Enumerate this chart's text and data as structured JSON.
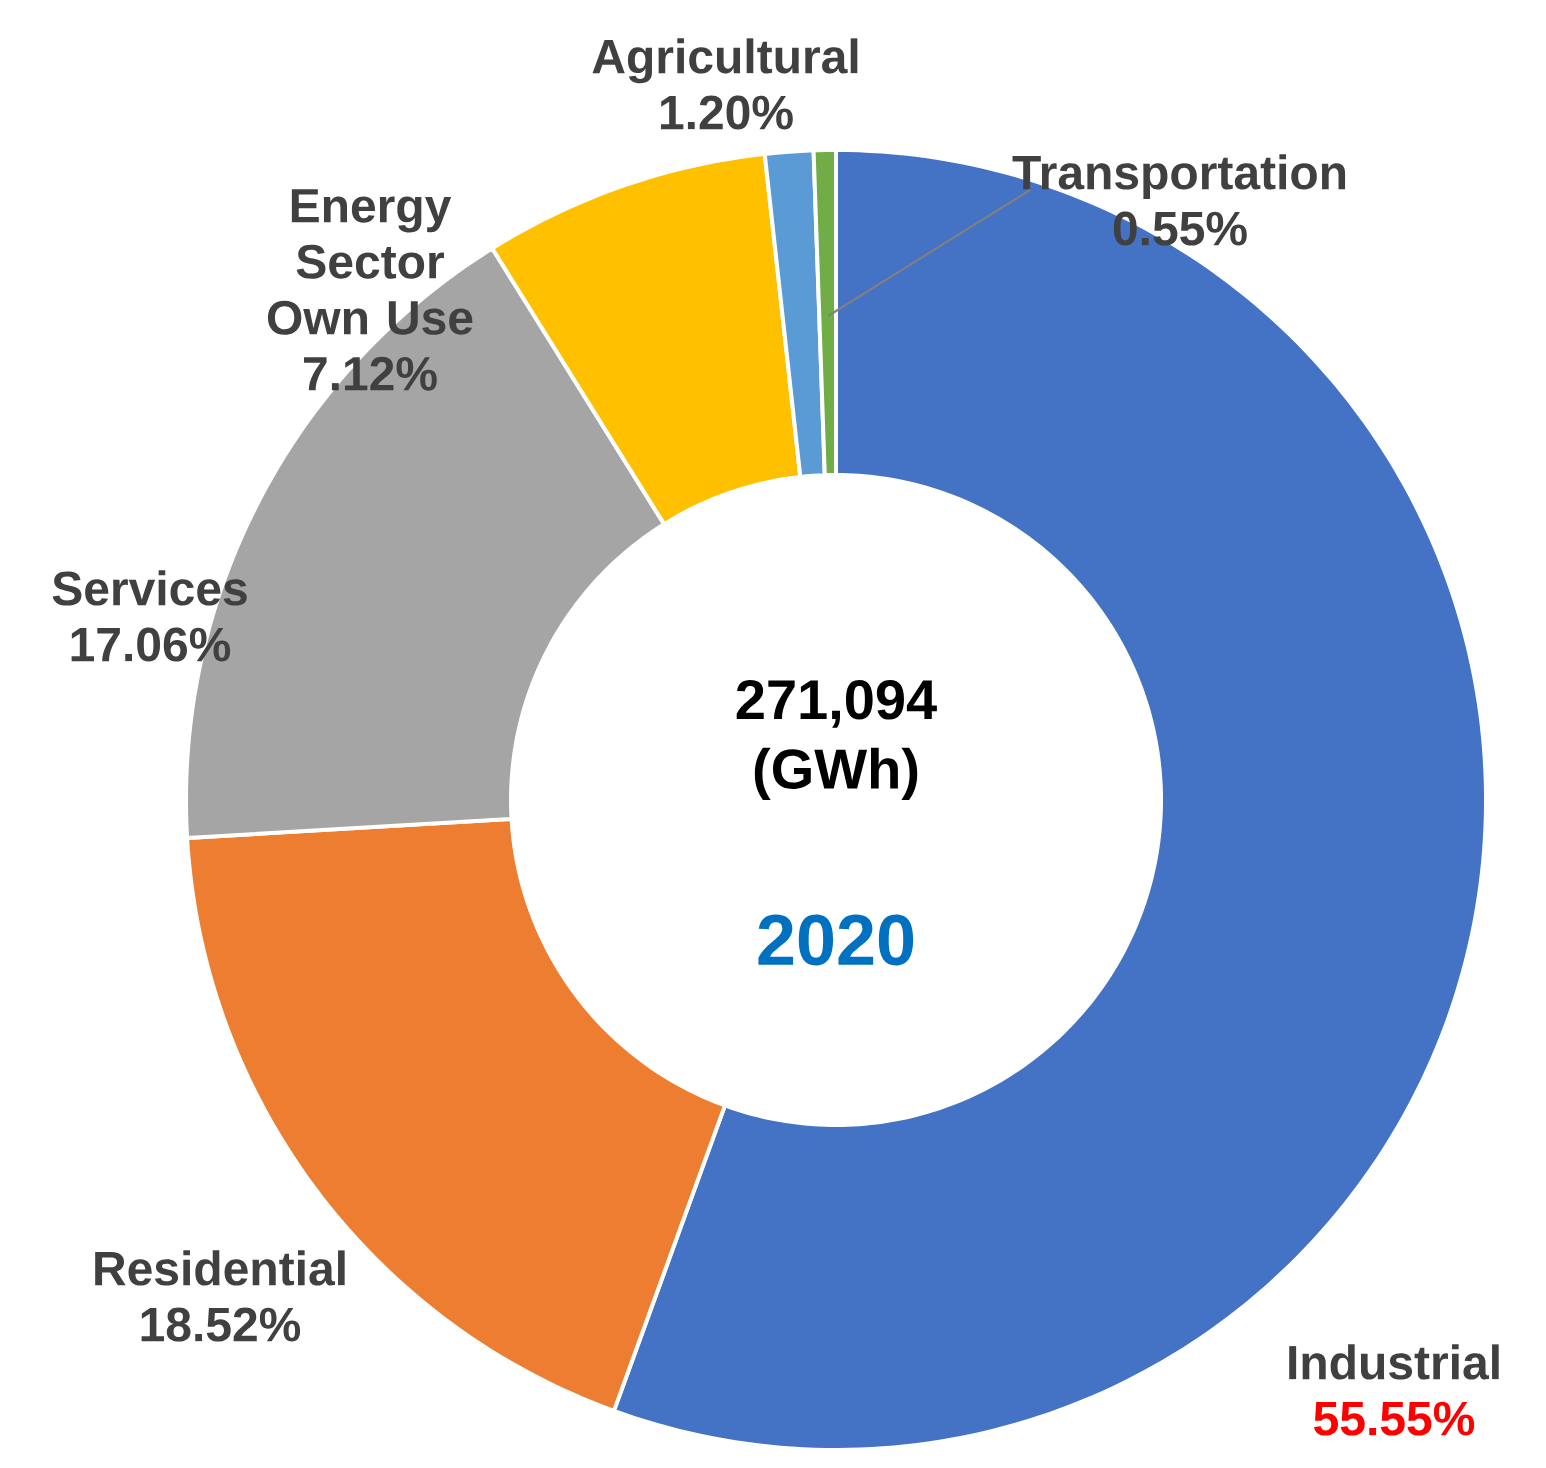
{
  "chart_data": {
    "type": "donut",
    "categories": [
      "Industrial",
      "Residential",
      "Services",
      "Energy Sector Own Use",
      "Agricultural",
      "Transportation"
    ],
    "values": [
      55.55,
      18.52,
      17.06,
      7.12,
      1.2,
      0.55
    ],
    "colors": [
      "#4472c4",
      "#ed7d31",
      "#a5a5a5",
      "#ffc000",
      "#5b9bd5",
      "#70ad47"
    ],
    "value_labels": [
      "55.55%",
      "18.52%",
      "17.06%",
      "7.12%",
      "1.20%",
      "0.55%"
    ],
    "annotations": [
      "271,094 (GWh)",
      "2020"
    ]
  }
}
